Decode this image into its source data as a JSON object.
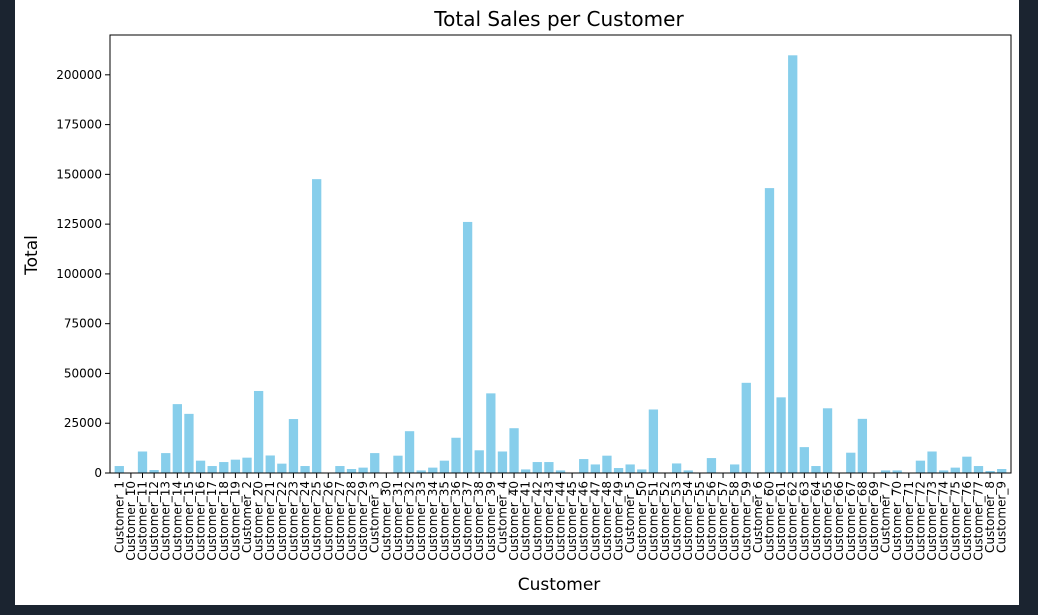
{
  "chart_data": {
    "type": "bar",
    "title": "Total Sales per Customer",
    "xlabel": "Customer",
    "ylabel": "Total",
    "ylim": [
      0,
      220000
    ],
    "yticks": [
      0,
      25000,
      50000,
      75000,
      100000,
      125000,
      150000,
      175000,
      200000
    ],
    "bar_color": "#87ceeb",
    "grid": false,
    "categories": [
      "Customer_1",
      "Customer_10",
      "Customer_11",
      "Customer_12",
      "Customer_13",
      "Customer_14",
      "Customer_15",
      "Customer_16",
      "Customer_17",
      "Customer_18",
      "Customer_19",
      "Customer_2",
      "Customer_20",
      "Customer_21",
      "Customer_22",
      "Customer_23",
      "Customer_24",
      "Customer_25",
      "Customer_26",
      "Customer_27",
      "Customer_28",
      "Customer_29",
      "Customer_3",
      "Customer_30",
      "Customer_31",
      "Customer_32",
      "Customer_33",
      "Customer_34",
      "Customer_35",
      "Customer_36",
      "Customer_37",
      "Customer_38",
      "Customer_39",
      "Customer_4",
      "Customer_40",
      "Customer_41",
      "Customer_42",
      "Customer_43",
      "Customer_44",
      "Customer_45",
      "Customer_46",
      "Customer_47",
      "Customer_48",
      "Customer_49",
      "Customer_5",
      "Customer_50",
      "Customer_51",
      "Customer_52",
      "Customer_53",
      "Customer_54",
      "Customer_55",
      "Customer_56",
      "Customer_57",
      "Customer_58",
      "Customer_59",
      "Customer_6",
      "Customer_60",
      "Customer_61",
      "Customer_62",
      "Customer_63",
      "Customer_64",
      "Customer_65",
      "Customer_66",
      "Customer_67",
      "Customer_68",
      "Customer_69",
      "Customer_7",
      "Customer_70",
      "Customer_71",
      "Customer_72",
      "Customer_73",
      "Customer_74",
      "Customer_75",
      "Customer_76",
      "Customer_77",
      "Customer_8",
      "Customer_9"
    ],
    "values": [
      3500,
      0,
      10800,
      1500,
      10000,
      34600,
      29700,
      6200,
      3500,
      5500,
      6700,
      7700,
      41200,
      8800,
      4700,
      27100,
      3500,
      147600,
      0,
      3500,
      2000,
      2700,
      10000,
      0,
      8700,
      21000,
      1300,
      2700,
      6200,
      17700,
      126100,
      11400,
      40000,
      10800,
      22500,
      1800,
      5500,
      5500,
      1300,
      0,
      7000,
      4300,
      8700,
      2500,
      4300,
      1800,
      31900,
      0,
      4800,
      1300,
      0,
      7500,
      0,
      4300,
      45300,
      0,
      143100,
      38000,
      209800,
      13000,
      3500,
      32500,
      0,
      10200,
      27200,
      0,
      1300,
      1300,
      0,
      6200,
      10800,
      1300,
      2700,
      8200,
      3500,
      1000,
      2000
    ]
  }
}
